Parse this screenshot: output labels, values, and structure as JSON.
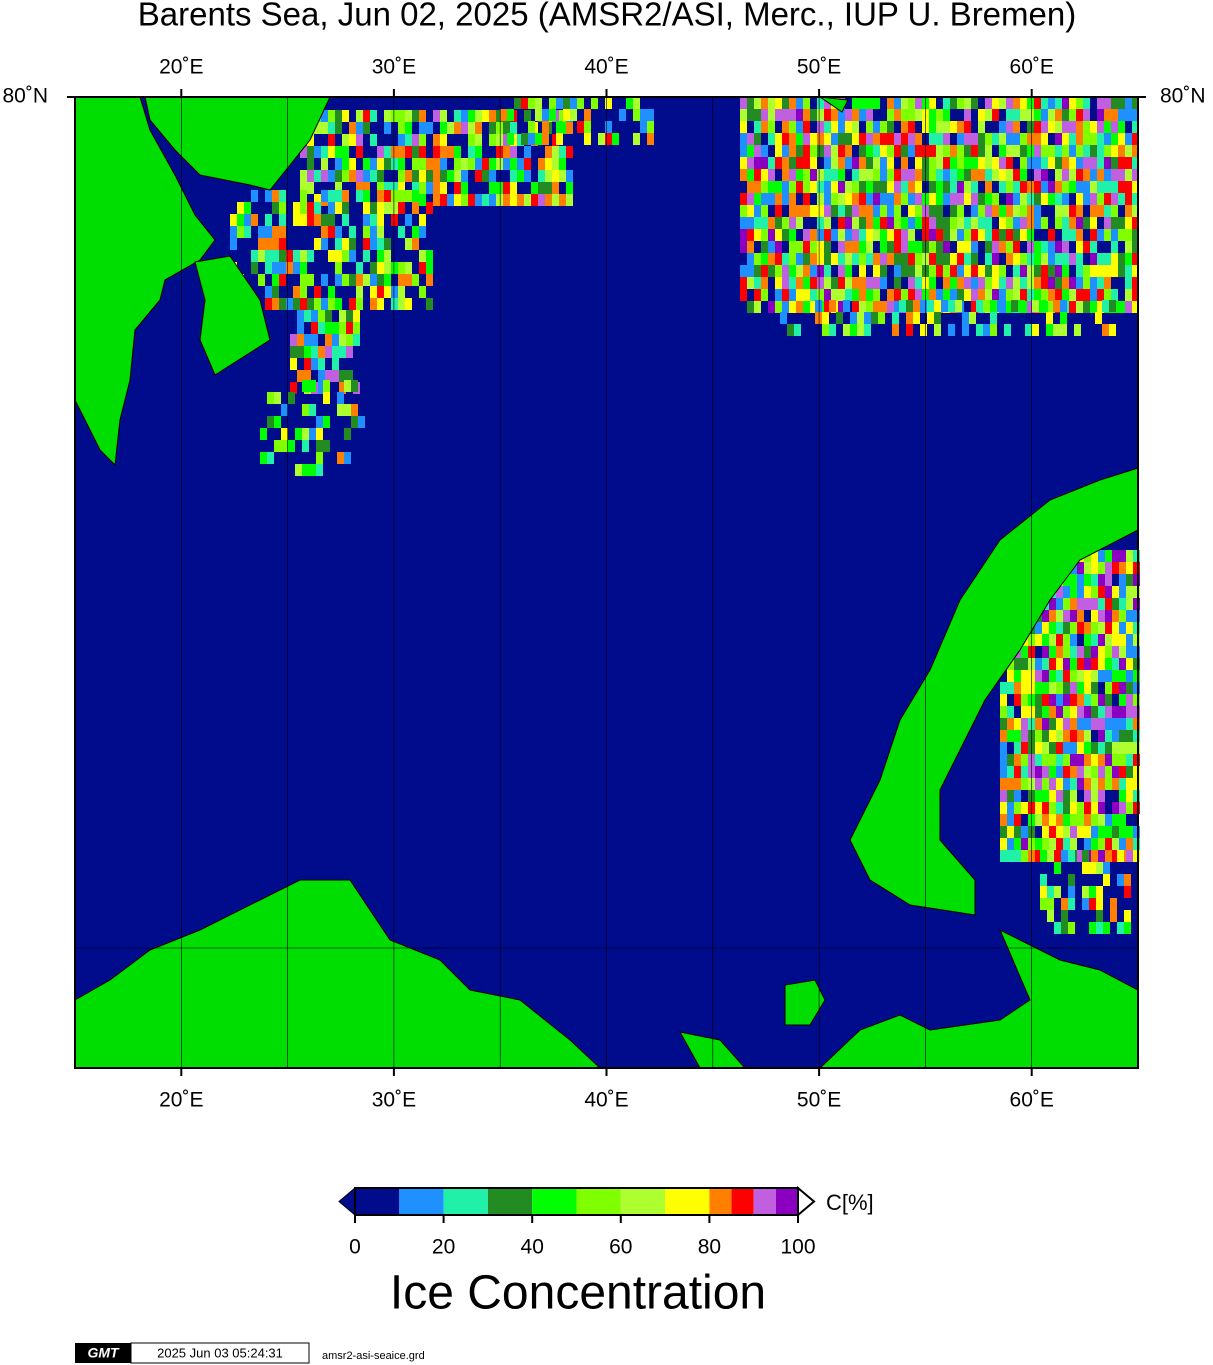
{
  "chart_data": {
    "type": "map",
    "title": "Barents Sea, Jun 02, 2025 (AMSR2/ASI, Merc., IUP U. Bremen)",
    "xlim": [
      15,
      65
    ],
    "xticks": [
      {
        "value": 20,
        "label": "20˚E"
      },
      {
        "value": 30,
        "label": "30˚E"
      },
      {
        "value": 40,
        "label": "40˚E"
      },
      {
        "value": 50,
        "label": "50˚E"
      },
      {
        "value": 60,
        "label": "60˚E"
      }
    ],
    "xgrid": [
      20,
      25,
      30,
      35,
      40,
      45,
      50,
      55,
      60
    ],
    "yticks": [
      {
        "value": 80,
        "label": "80˚N"
      }
    ],
    "colorbar": {
      "label": "C[%]",
      "title": "Ice Concentration",
      "clim": [
        0,
        100
      ],
      "ticks": [
        0,
        20,
        40,
        60,
        80,
        100
      ],
      "levels": [
        0,
        10,
        20,
        30,
        40,
        50,
        60,
        70,
        80,
        85,
        90,
        95,
        100
      ],
      "colors": [
        "#000c8c",
        "#1e90ff",
        "#20f0a8",
        "#228b22",
        "#00ff00",
        "#7fff00",
        "#adff2f",
        "#ffff00",
        "#ff8000",
        "#ff0000",
        "#c060e0",
        "#8b00c0"
      ]
    },
    "footer": {
      "logo": "GMT",
      "timestamp": "2025 Jun 03 05:24:31",
      "file": "amsr2-asi-seaice.grd"
    }
  }
}
